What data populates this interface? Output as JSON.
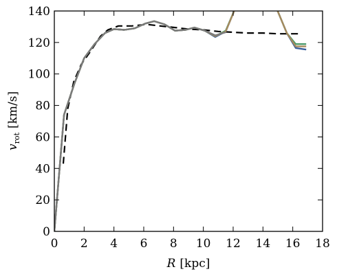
{
  "chart_data": {
    "type": "line",
    "xlabel_symbol": "R",
    "xlabel_unit": "[kpc]",
    "ylabel_symbol": "v",
    "ylabel_subscript": "rot",
    "ylabel_unit": "[km/s]",
    "xlim": [
      0,
      18
    ],
    "ylim": [
      0,
      140
    ],
    "xticks": [
      0,
      2,
      4,
      6,
      8,
      10,
      12,
      14,
      16,
      18
    ],
    "yticks": [
      0,
      20,
      40,
      60,
      80,
      100,
      120,
      140
    ],
    "grid": false,
    "series": [
      {
        "style": "dashed",
        "color": "#000000",
        "x": [
          0.6,
          0.9,
          1.3,
          1.8,
          2.4,
          3.1,
          3.6,
          4.3,
          5.2,
          6.2,
          7.1,
          8.1,
          9.0,
          10.0,
          11.0,
          12.0,
          13.0,
          14.0,
          15.0,
          16.0,
          16.6
        ],
        "y": [
          43,
          78,
          95,
          106,
          114,
          124,
          128,
          130.5,
          130.5,
          131.5,
          130.5,
          129.5,
          128.5,
          128,
          127,
          126.5,
          126,
          126,
          125.5,
          125.5,
          125.5
        ]
      },
      {
        "style": "solid",
        "color": "#3a5f9c",
        "x": [
          0.0,
          0.65,
          1.35,
          2.0,
          2.7,
          3.4,
          4.0,
          4.7,
          5.4,
          6.1,
          6.7,
          7.4,
          8.1,
          8.8,
          9.4,
          10.1,
          10.8,
          11.5,
          12.2,
          12.9,
          13.5,
          14.2,
          14.9,
          15.6,
          16.2,
          16.9
        ],
        "y": [
          0,
          74,
          94,
          110,
          119,
          126,
          128.5,
          128,
          129,
          132,
          133.5,
          131.5,
          127.5,
          128,
          129.5,
          127.5,
          123.5,
          127,
          143,
          145,
          144,
          143,
          142,
          126,
          116.5,
          115.5
        ]
      },
      {
        "style": "solid",
        "color": "#4a9a6a",
        "x": [
          0.0,
          0.65,
          1.35,
          2.0,
          2.7,
          3.4,
          4.0,
          4.7,
          5.4,
          6.1,
          6.7,
          7.4,
          8.1,
          8.8,
          9.4,
          10.1,
          10.8,
          11.5,
          12.2,
          12.9,
          13.5,
          14.2,
          14.9,
          15.6,
          16.2,
          16.9
        ],
        "y": [
          0,
          74,
          94,
          110,
          119,
          126,
          128.5,
          128,
          129,
          132,
          133.5,
          131.5,
          127.5,
          128,
          129.5,
          127.5,
          124,
          127.5,
          143,
          145,
          144,
          143,
          142,
          126,
          119,
          119
        ]
      },
      {
        "style": "solid",
        "color": "#a68a5e",
        "x": [
          0.0,
          0.65,
          1.35,
          2.0,
          2.7,
          3.4,
          4.0,
          4.7,
          5.4,
          6.1,
          6.7,
          7.4,
          8.1,
          8.8,
          9.4,
          10.1,
          10.8,
          11.5,
          12.2,
          12.9,
          13.5,
          14.2,
          14.9,
          15.6,
          16.2,
          16.9
        ],
        "y": [
          0,
          74,
          94,
          110,
          119,
          126,
          128.5,
          128,
          129,
          132,
          133.5,
          131.5,
          127.5,
          128,
          129.5,
          127.5,
          124,
          127,
          143,
          145,
          144,
          143,
          142,
          126,
          117.5,
          117.5
        ]
      },
      {
        "style": "solid",
        "color": "#7a7a7a",
        "x": [
          0.0,
          0.65,
          1.35,
          2.0,
          2.7,
          3.4,
          4.0,
          4.7,
          5.4,
          6.1,
          6.7,
          7.4,
          8.1,
          8.8,
          9.4,
          10.1,
          10.8,
          11.5
        ],
        "y": [
          0,
          74,
          94,
          110,
          119,
          126,
          128.5,
          128,
          129,
          132,
          133.5,
          131.5,
          127.5,
          128,
          129.5,
          127.5,
          124.5,
          126.5
        ]
      }
    ]
  }
}
